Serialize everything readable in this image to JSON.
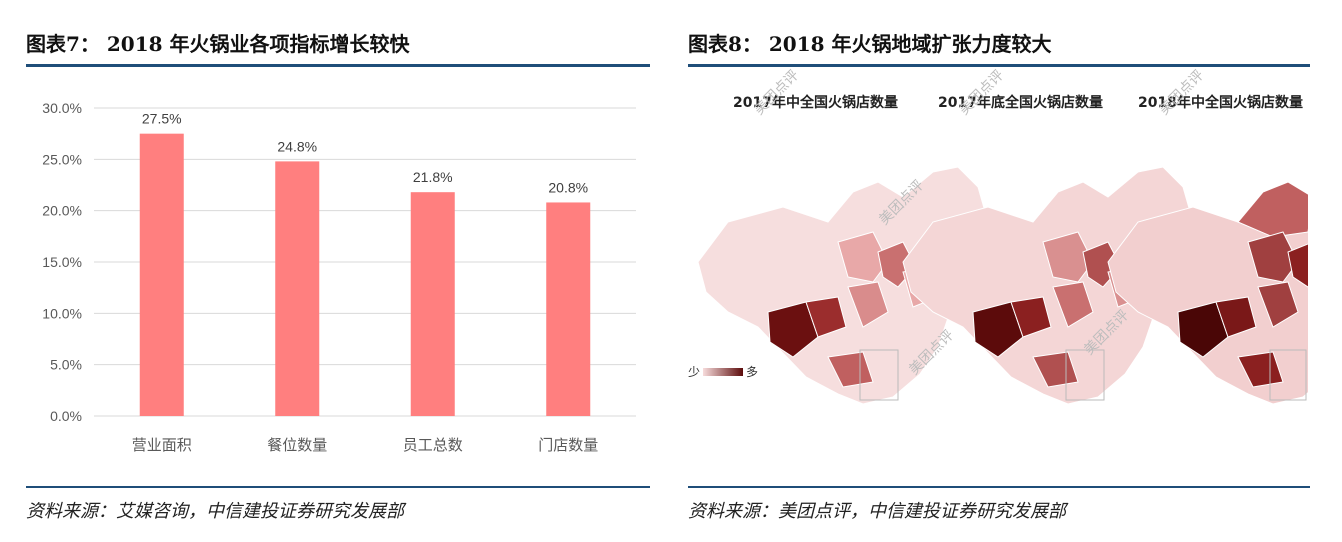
{
  "left_panel": {
    "title": "图表7：   2018 年火锅业各项指标增长较快",
    "source": "资料来源：艾媒咨询，中信建投证券研究发展部"
  },
  "right_panel": {
    "title": "图表8：   2018 年火锅地域扩张力度较大",
    "source": "资料来源：美团点评，中信建投证券研究发展部",
    "maps": [
      {
        "title": "2017年中全国火锅店数量"
      },
      {
        "title": "2017年底全国火锅店数量"
      },
      {
        "title": "2018年中全国火锅店数量"
      }
    ],
    "legend": {
      "low": "少",
      "high": "多"
    },
    "watermark": "美团点评",
    "colors": {
      "low": "#f7dcdc",
      "high": "#5c0b0b"
    }
  },
  "chart_data": {
    "type": "bar",
    "categories": [
      "营业面积",
      "餐位数量",
      "员工总数",
      "门店数量"
    ],
    "values": [
      27.5,
      24.8,
      21.8,
      20.8
    ],
    "data_labels": [
      "27.5%",
      "24.8%",
      "21.8%",
      "20.8%"
    ],
    "title": "",
    "xlabel": "",
    "ylabel": "",
    "ylim": [
      0,
      30
    ],
    "yticks": [
      "0.0%",
      "5.0%",
      "10.0%",
      "15.0%",
      "20.0%",
      "25.0%",
      "30.0%"
    ],
    "grid": true,
    "bar_color": "#ff7f7f"
  }
}
